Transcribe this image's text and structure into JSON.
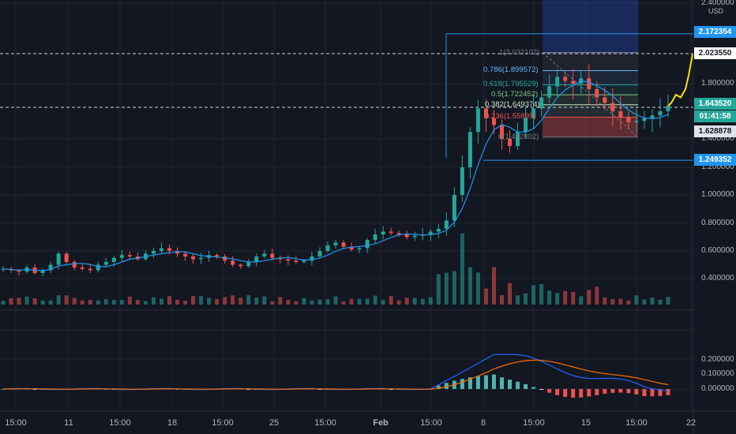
{
  "chart": {
    "currency": "USD",
    "price_axis": [
      {
        "label": "2.400000",
        "value": 2.4
      },
      {
        "label": "1.800000",
        "value": 1.8
      },
      {
        "label": "1.400000",
        "value": 1.4
      },
      {
        "label": "1.200000",
        "value": 1.2
      },
      {
        "label": "1.000000",
        "value": 1.0
      },
      {
        "label": "0.800000",
        "value": 0.8
      },
      {
        "label": "0.600000",
        "value": 0.6
      },
      {
        "label": "0.400000",
        "value": 0.4
      }
    ],
    "macd_axis": [
      {
        "label": "0.200000",
        "value": 0.2
      },
      {
        "label": "0.100000",
        "value": 0.1
      },
      {
        "label": "0.000000",
        "value": 0.0
      }
    ],
    "time_axis": [
      "15:00",
      "11",
      "15:00",
      "18",
      "15:00",
      "25",
      "15:00",
      "Feb",
      "15:00",
      "8",
      "15:00",
      "15",
      "15:00",
      "22"
    ],
    "price_tags": [
      {
        "label": "2.172354",
        "kind": "line-level",
        "bg": "#2196f3",
        "fg": "#ffffff"
      },
      {
        "label": "2.023550",
        "kind": "crosshair",
        "bg": "#ffffff",
        "fg": "#131722"
      },
      {
        "label": "1.643520",
        "kind": "last-price",
        "bg": "#26a69a",
        "fg": "#ffffff"
      },
      {
        "label": "01:41:58",
        "kind": "countdown",
        "bg": "#26a69a",
        "fg": "#ffffff"
      },
      {
        "label": "1.628878",
        "kind": "crosshair-2",
        "bg": "#e0e3eb",
        "fg": "#131722"
      },
      {
        "label": "1.249352",
        "kind": "line-level",
        "bg": "#2196f3",
        "fg": "#ffffff"
      }
    ],
    "fib_levels": [
      {
        "label": "1(2.032102)",
        "ratio": 1.0,
        "color": "#787b86"
      },
      {
        "label": "0.786(1.899572)",
        "ratio": 0.786,
        "color": "#64b5f6"
      },
      {
        "label": "0.618(1.795529)",
        "ratio": 0.618,
        "color": "#26a69a"
      },
      {
        "label": "0.5(1.722452)",
        "ratio": 0.5,
        "color": "#81c784"
      },
      {
        "label": "0.382(1.649374)",
        "ratio": 0.382,
        "color": "#c8e6c9"
      },
      {
        "label": "0.236(1.55895)",
        "ratio": 0.236,
        "color": "#ef5350"
      },
      {
        "label": "0(1.412802)",
        "ratio": 0.0,
        "color": "#787b86"
      }
    ],
    "colors": {
      "background": "#131722",
      "grid": "#1f2431",
      "up": "#26a69a",
      "down": "#ef5350",
      "ma_line": "#2196f3",
      "macd_line": "#2962ff",
      "signal_line": "#ff6d00",
      "projection": "#f7e600",
      "level_line": "#2196f3"
    }
  },
  "chart_data": {
    "type": "candlestick",
    "currency": "USD",
    "close_series": [
      0.47,
      0.46,
      0.45,
      0.48,
      0.44,
      0.46,
      0.5,
      0.58,
      0.52,
      0.48,
      0.47,
      0.46,
      0.5,
      0.52,
      0.55,
      0.57,
      0.56,
      0.54,
      0.58,
      0.6,
      0.62,
      0.6,
      0.58,
      0.56,
      0.54,
      0.55,
      0.57,
      0.56,
      0.53,
      0.5,
      0.49,
      0.52,
      0.56,
      0.58,
      0.55,
      0.54,
      0.53,
      0.52,
      0.53,
      0.56,
      0.6,
      0.64,
      0.66,
      0.63,
      0.61,
      0.62,
      0.68,
      0.72,
      0.74,
      0.73,
      0.72,
      0.7,
      0.71,
      0.72,
      0.74,
      0.76,
      0.82,
      1.0,
      1.2,
      1.45,
      1.62,
      1.55,
      1.5,
      1.4,
      1.35,
      1.45,
      1.55,
      1.62,
      1.7,
      1.78,
      1.85,
      1.82,
      1.8,
      1.84,
      1.76,
      1.7,
      1.66,
      1.6,
      1.56,
      1.52,
      1.53,
      1.55,
      1.57,
      1.6,
      1.64
    ],
    "projection": {
      "from": 1.64352,
      "to": 2.02355
    },
    "levels": [
      2.172354,
      1.249352
    ],
    "ylim": [
      0.3,
      2.4
    ],
    "macd_ylim": [
      -0.03,
      0.26
    ]
  }
}
